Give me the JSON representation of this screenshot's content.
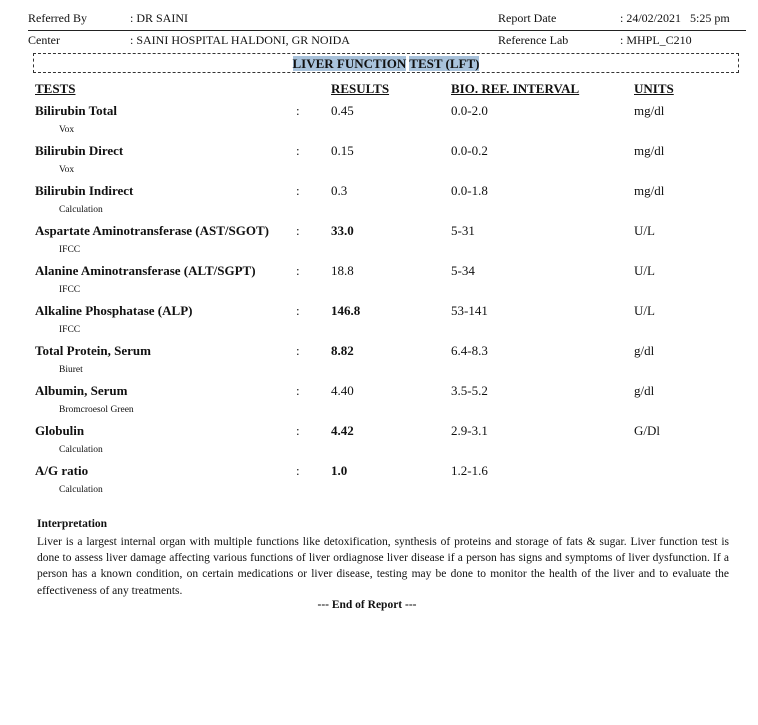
{
  "header": {
    "referred_by_label": "Referred By",
    "referred_by_value": ": DR SAINI",
    "report_date_label": "Report Date",
    "report_date_value": ": 24/02/2021   5:25 pm",
    "center_label": "Center",
    "center_value": ": SAINI HOSPITAL HALDONI, GR NOIDA",
    "reference_lab_label": "Reference Lab",
    "reference_lab_value": ": MHPL_C210"
  },
  "title_part1": "LIVER FUNCTION",
  "title_part2": "TEST (LFT)",
  "highlight_color": "#a9c3dc",
  "columns": {
    "tests": "TESTS",
    "results": "RESULTS",
    "interval": "BIO. REF. INTERVAL",
    "units": "UNITS"
  },
  "tests": [
    {
      "name": "Bilirubin Total",
      "colon": ":",
      "result": "0.45",
      "bold": false,
      "interval": "0.0-2.0",
      "unit": "mg/dl",
      "method": "Vox"
    },
    {
      "name": "Bilirubin Direct",
      "colon": ":",
      "result": "0.15",
      "bold": false,
      "interval": "0.0-0.2",
      "unit": "mg/dl",
      "method": "Vox"
    },
    {
      "name": "Bilirubin Indirect",
      "colon": ":",
      "result": "0.3",
      "bold": false,
      "interval": "0.0-1.8",
      "unit": "mg/dl",
      "method": "Calculation"
    },
    {
      "name": "Aspartate Aminotransferase (AST/SGOT)",
      "colon": ":",
      "result": "33.0",
      "bold": true,
      "interval": "5-31",
      "unit": "U/L",
      "method": "IFCC"
    },
    {
      "name": "Alanine Aminotransferase (ALT/SGPT)",
      "colon": ":",
      "result": "18.8",
      "bold": false,
      "interval": "5-34",
      "unit": "U/L",
      "method": "IFCC"
    },
    {
      "name": "Alkaline Phosphatase (ALP)",
      "colon": ":",
      "result": "146.8",
      "bold": true,
      "interval": "53-141",
      "unit": "U/L",
      "method": "IFCC"
    },
    {
      "name": "Total Protein, Serum",
      "colon": ":",
      "result": "8.82",
      "bold": true,
      "interval": "6.4-8.3",
      "unit": "g/dl",
      "method": "Biuret"
    },
    {
      "name": "Albumin, Serum",
      "colon": ":",
      "result": "4.40",
      "bold": false,
      "interval": "3.5-5.2",
      "unit": "g/dl",
      "method": "Bromcroesol Green"
    },
    {
      "name": "Globulin",
      "colon": ":",
      "result": "4.42",
      "bold": true,
      "interval": "2.9-3.1",
      "unit": "G/Dl",
      "method": "Calculation"
    },
    {
      "name": "A/G ratio",
      "colon": ":",
      "result": "1.0",
      "bold": true,
      "interval": "1.2-1.6",
      "unit": "",
      "method": "Calculation"
    }
  ],
  "interpretation_heading": "Interpretation",
  "interpretation_text": "Liver is a largest internal organ with multiple functions like detoxification, synthesis of proteins and storage of fats &  sugar. Liver function test is done to assess liver damage affecting various functions of liver ordiagnose liver disease if a person has signs and symptoms of liver dysfunction. If a person has a known condition, on certain medications or liver disease, testing may be done to monitor the health of the liver and to evaluate the effectiveness of any treatments.",
  "end_text": "--- End of Report ---"
}
